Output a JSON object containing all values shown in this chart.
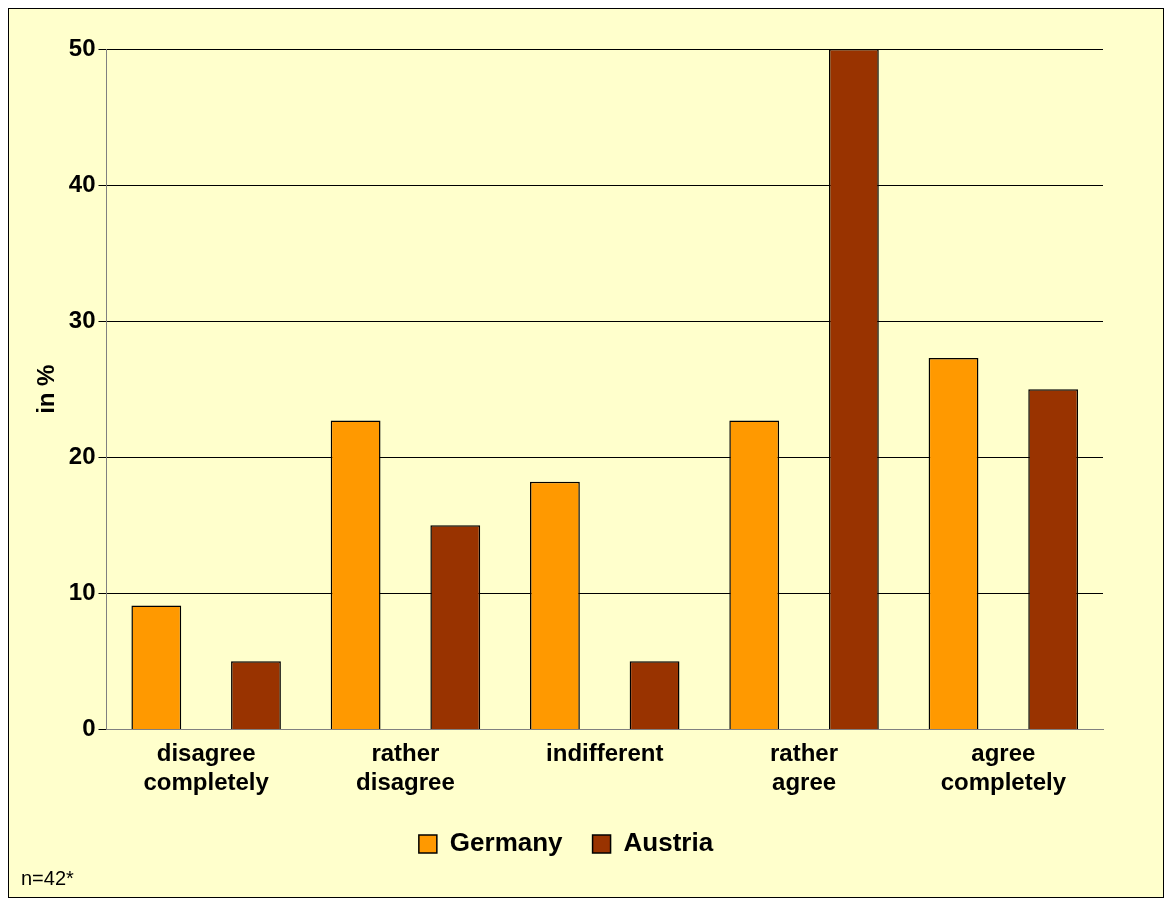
{
  "chart_data": {
    "type": "bar",
    "ylabel": "in %",
    "categories": [
      "disagree completely",
      "rather disagree",
      "indifferent",
      "rather agree",
      "agree completely"
    ],
    "series": [
      {
        "name": "Germany",
        "color": "#ff9900",
        "values": [
          9.1,
          22.7,
          18.2,
          22.7,
          27.3
        ]
      },
      {
        "name": "Austria",
        "color": "#993300",
        "values": [
          5,
          15,
          5,
          50,
          25
        ]
      }
    ],
    "ylim": [
      0,
      50
    ],
    "yticks": [
      0,
      10,
      20,
      30,
      40,
      50
    ],
    "grid": "y",
    "legend": "bottom",
    "annotations": [
      "n=42*"
    ]
  }
}
